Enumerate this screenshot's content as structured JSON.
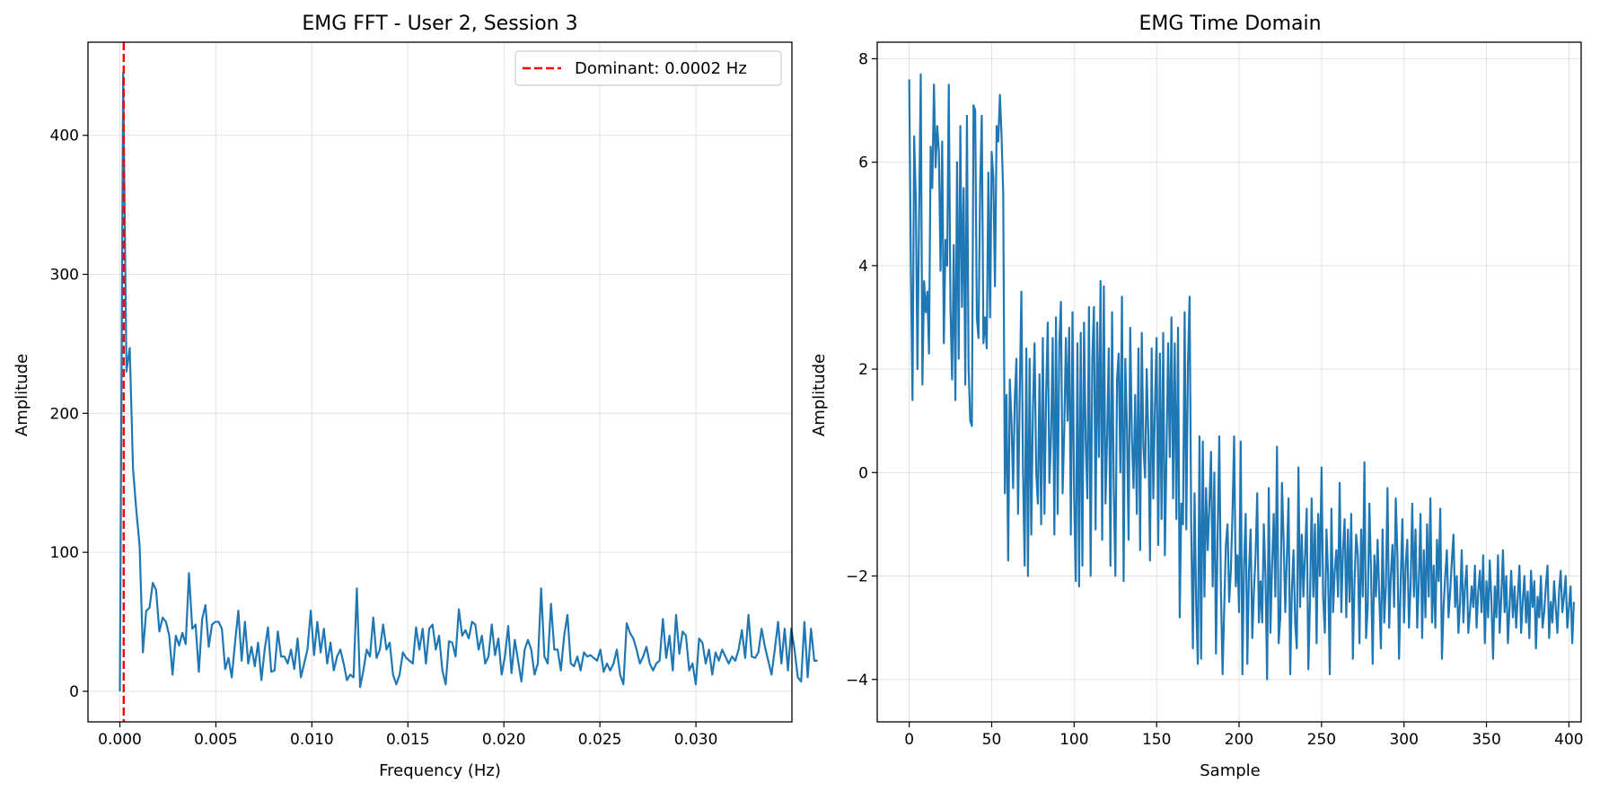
{
  "chart_data": [
    {
      "type": "line",
      "title": "EMG FFT - User 2, Session 3",
      "xlabel": "Frequency (Hz)",
      "ylabel": "Amplitude",
      "xlim": [
        -0.00166,
        0.035
      ],
      "ylim": [
        -22,
        467
      ],
      "xticks": [
        0.0,
        0.005,
        0.01,
        0.015,
        0.02,
        0.025,
        0.03
      ],
      "xtick_labels": [
        "0.000",
        "0.005",
        "0.010",
        "0.015",
        "0.020",
        "0.025",
        "0.030"
      ],
      "yticks": [
        0,
        100,
        200,
        300,
        400
      ],
      "ytick_labels": [
        "0",
        "100",
        "200",
        "300",
        "400"
      ],
      "grid": true,
      "legend": {
        "position": "top-right",
        "entries": [
          "Dominant: 0.0002 Hz"
        ]
      },
      "dominant_frequency": 0.0002,
      "line_color": "#1f77b4",
      "marker_color": "#ff0000",
      "x_step": 0.0001714,
      "values": [
        0,
        445,
        230,
        247,
        160,
        130,
        105,
        28,
        58,
        60,
        78,
        73,
        43,
        53,
        50,
        40,
        12,
        40,
        33,
        42,
        34,
        85,
        45,
        48,
        14,
        52,
        62,
        32,
        48,
        50,
        50,
        45,
        16,
        24,
        10,
        35,
        58,
        22,
        50,
        20,
        32,
        18,
        35,
        8,
        30,
        46,
        14,
        15,
        43,
        25,
        25,
        20,
        30,
        16,
        38,
        10,
        20,
        30,
        58,
        26,
        50,
        28,
        45,
        20,
        35,
        15,
        25,
        30,
        20,
        8,
        12,
        10,
        74,
        3,
        15,
        30,
        25,
        53,
        24,
        30,
        48,
        30,
        35,
        12,
        5,
        12,
        28,
        24,
        22,
        20,
        46,
        30,
        45,
        20,
        45,
        48,
        30,
        40,
        15,
        5,
        36,
        35,
        25,
        59,
        40,
        44,
        38,
        50,
        48,
        30,
        40,
        20,
        25,
        48,
        26,
        38,
        12,
        25,
        47,
        13,
        37,
        22,
        7,
        30,
        37,
        30,
        12,
        20,
        74,
        25,
        20,
        63,
        30,
        30,
        15,
        40,
        55,
        20,
        18,
        25,
        15,
        28,
        25,
        26,
        24,
        22,
        30,
        14,
        20,
        15,
        20,
        30,
        12,
        5,
        49,
        42,
        38,
        30,
        20,
        25,
        32,
        20,
        15,
        20,
        22,
        52,
        24,
        40,
        15,
        55,
        27,
        43,
        40,
        15,
        20,
        5,
        38,
        35,
        20,
        30,
        12,
        28,
        22,
        30,
        25,
        20,
        25,
        22,
        30,
        44,
        24,
        55,
        25,
        24,
        28,
        45,
        32,
        22,
        12,
        30,
        50,
        20,
        45,
        15,
        45,
        30,
        10,
        7,
        50,
        10,
        45,
        22,
        22
      ]
    },
    {
      "type": "line",
      "title": "EMG Time Domain",
      "xlabel": "Sample",
      "ylabel": "Amplitude",
      "xlim": [
        -19.4,
        407.4
      ],
      "ylim": [
        -4.82,
        8.32
      ],
      "xticks": [
        0,
        50,
        100,
        150,
        200,
        250,
        300,
        350,
        400
      ],
      "xtick_labels": [
        "0",
        "50",
        "100",
        "150",
        "200",
        "250",
        "300",
        "350",
        "400"
      ],
      "yticks": [
        -4,
        -2,
        0,
        2,
        4,
        6,
        8
      ],
      "ytick_labels": [
        "−4",
        "−2",
        "0",
        "2",
        "4",
        "6",
        "8"
      ],
      "grid": true,
      "line_color": "#1f77b4",
      "x_step": 1,
      "values": [
        7.6,
        4.0,
        1.4,
        6.5,
        5.3,
        2.0,
        5.0,
        7.7,
        1.7,
        3.7,
        3.1,
        3.5,
        2.3,
        6.3,
        5.5,
        7.5,
        5.9,
        6.7,
        6.2,
        3.9,
        6.4,
        2.5,
        4.5,
        4.0,
        7.5,
        3.2,
        1.8,
        4.4,
        1.4,
        6.0,
        2.2,
        6.7,
        3.2,
        5.5,
        1.7,
        6.9,
        2.0,
        1.0,
        0.9,
        7.1,
        7.0,
        3.0,
        2.6,
        5.5,
        6.9,
        2.5,
        3.0,
        2.4,
        5.8,
        3.0,
        6.2,
        5.7,
        3.6,
        6.7,
        6.4,
        7.3,
        6.5,
        5.4,
        -0.4,
        1.5,
        -1.7,
        1.8,
        1.0,
        -0.3,
        1.4,
        2.2,
        -0.8,
        1.5,
        3.5,
        0.0,
        -1.8,
        2.4,
        -2.0,
        2.2,
        -1.2,
        1.2,
        2.5,
        0.0,
        -0.6,
        1.9,
        -1.0,
        2.6,
        -0.8,
        1.5,
        2.9,
        -0.2,
        0.7,
        2.6,
        -1.2,
        3.0,
        -0.8,
        2.5,
        3.3,
        -0.4,
        0.8,
        2.6,
        1.0,
        2.8,
        -1.2,
        3.1,
        -0.5,
        -2.1,
        2.5,
        -2.2,
        2.7,
        -1.8,
        2.9,
        0.6,
        -0.5,
        3.2,
        -2.0,
        2.2,
        3.2,
        -1.1,
        2.9,
        0.3,
        3.7,
        -1.3,
        3.6,
        -0.6,
        0.7,
        2.4,
        -1.8,
        3.1,
        -0.3,
        -2.0,
        1.8,
        2.3,
        0.0,
        3.4,
        -2.1,
        2.2,
        0.9,
        -1.3,
        2.8,
        0.7,
        -0.3,
        1.5,
        -0.8,
        2.4,
        -1.5,
        2.7,
        0.5,
        -0.1,
        2.0,
        0.7,
        -1.7,
        2.4,
        -0.5,
        1.3,
        2.6,
        -1.4,
        2.3,
        -0.9,
        2.7,
        -1.6,
        0.4,
        2.5,
        0.3,
        3.0,
        -0.5,
        2.5,
        -0.9,
        2.8,
        -2.8,
        -0.6,
        -1.0,
        3.1,
        -1.1,
        2.1,
        3.4,
        -1.1,
        -3.4,
        -0.4,
        -2.6,
        -3.7,
        0.7,
        -3.6,
        0.6,
        -2.4,
        -0.3,
        -1.5,
        -0.6,
        0.4,
        -2.2,
        0.0,
        -3.5,
        -1.2,
        0.7,
        -2.3,
        -3.9,
        -2.6,
        -1.4,
        -1.0,
        -2.5,
        -1.9,
        -0.8,
        0.7,
        -2.2,
        -1.6,
        -2.7,
        0.6,
        -3.9,
        -1.8,
        -0.8,
        -3.7,
        -1.9,
        -1.1,
        -3.2,
        -2.3,
        -1.6,
        -0.4,
        -2.9,
        -2.1,
        -2.9,
        -1.0,
        -2.0,
        -4.0,
        -0.3,
        -3.1,
        -1.8,
        -0.8,
        -2.4,
        0.5,
        -3.3,
        -2.8,
        -0.2,
        -1.3,
        -2.7,
        -1.6,
        -0.5,
        -3.9,
        -2.3,
        -1.5,
        -2.9,
        -3.4,
        0.1,
        -2.6,
        -1.2,
        -2.4,
        -1.6,
        -0.7,
        -3.8,
        -2.5,
        -0.5,
        -2.4,
        -1.0,
        -3.3,
        -0.8,
        -2.0,
        0.1,
        -2.4,
        -3.1,
        -1.1,
        -2.0,
        -3.9,
        -0.7,
        -2.7,
        -1.9,
        -1.5,
        -2.4,
        -0.2,
        -2.7,
        -1.5,
        -0.9,
        -2.8,
        -1.1,
        -2.5,
        -0.8,
        -3.6,
        -2.1,
        -1.2,
        -1.6,
        -3.3,
        -1.1,
        -2.4,
        0.2,
        -3.2,
        -2.6,
        -0.6,
        -1.9,
        -3.7,
        -1.6,
        -2.4,
        -1.3,
        -2.4,
        -3.4,
        -1.1,
        -2.9,
        -2.2,
        -0.3,
        -3.0,
        -2.0,
        -1.4,
        -2.6,
        -0.5,
        -1.6,
        -3.6,
        -2.1,
        -0.9,
        -2.9,
        -1.8,
        -1.3,
        -3.0,
        -2.2,
        -0.6,
        -2.4,
        -1.1,
        -3.0,
        -2.1,
        -0.8,
        -3.2,
        -1.5,
        -2.8,
        -1.0,
        -2.4,
        -0.5,
        -2.9,
        -1.8,
        -3.0,
        -1.3,
        -2.1,
        -0.7,
        -3.6,
        -2.6,
        -2.0,
        -1.5,
        -2.8,
        -2.3,
        -1.7,
        -1.2,
        -2.6,
        -2.0,
        -3.1,
        -2.5,
        -1.5,
        -2.9,
        -2.2,
        -1.8,
        -3.1,
        -2.7,
        -2.2,
        -2.6,
        -1.8,
        -3.0,
        -2.3,
        -1.9,
        -2.7,
        -1.6,
        -3.3,
        -2.1,
        -2.8,
        -1.7,
        -2.5,
        -3.6,
        -2.2,
        -2.8,
        -1.6,
        -3.1,
        -2.4,
        -1.5,
        -2.7,
        -2.0,
        -3.3,
        -2.6,
        -1.9,
        -2.8,
        -2.2,
        -3.0,
        -2.4,
        -1.8,
        -3.1,
        -2.5,
        -2.0,
        -2.9,
        -2.3,
        -3.2,
        -1.9,
        -2.6,
        -2.1,
        -3.4,
        -2.4,
        -2.8,
        -2.0,
        -3.0,
        -2.7,
        -2.2,
        -1.8,
        -3.2,
        -2.5,
        -2.9,
        -2.1,
        -2.6,
        -3.1,
        -2.3,
        -1.9,
        -2.7,
        -2.4,
        -2.0,
        -3.0,
        -2.6,
        -2.2,
        -3.3,
        -2.5
      ]
    }
  ]
}
